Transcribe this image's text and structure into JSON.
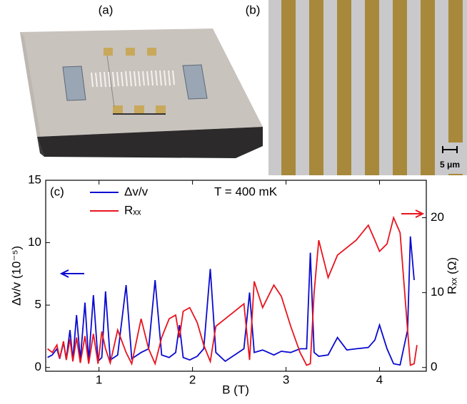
{
  "panel_a": {
    "label": "(a)"
  },
  "panel_b": {
    "label": "(b)",
    "scale_bar": "5 μm"
  },
  "chart_data": {
    "type": "line",
    "panel_label": "(c)",
    "annotation": "T = 400 mK",
    "x_label": "B (T)",
    "y_label": "Δv/v (10⁻⁵)",
    "y2_label": "Rₓₓ (Ω)",
    "xlim": [
      0.43,
      4.5
    ],
    "xticks": [
      1,
      2,
      3,
      4
    ],
    "ylim": [
      -0.3,
      15
    ],
    "yticks": [
      0,
      5,
      10,
      15
    ],
    "y2lim": [
      -0.5,
      25
    ],
    "y2ticks": [
      0,
      10,
      20
    ],
    "legend": "top-left",
    "x": [
      0.45,
      0.5,
      0.55,
      0.58,
      0.62,
      0.65,
      0.69,
      0.72,
      0.76,
      0.8,
      0.85,
      0.89,
      0.94,
      0.99,
      1.03,
      1.07,
      1.12,
      1.2,
      1.29,
      1.35,
      1.45,
      1.53,
      1.6,
      1.67,
      1.75,
      1.82,
      1.86,
      1.9,
      1.97,
      2.05,
      2.12,
      2.19,
      2.25,
      2.35,
      2.45,
      2.55,
      2.61,
      2.66,
      2.75,
      2.87,
      2.95,
      3.05,
      3.15,
      3.22,
      3.26,
      3.3,
      3.35,
      3.45,
      3.55,
      3.65,
      3.75,
      3.88,
      3.95,
      4.0,
      4.08,
      4.15,
      4.22,
      4.3,
      4.33,
      4.37,
      4.4
    ],
    "series": [
      {
        "name": "Δv/v",
        "color": "#0a0ad0",
        "axis": "y",
        "values": [
          0.8,
          1.0,
          1.5,
          0.7,
          2.0,
          0.7,
          3.0,
          0.6,
          4.2,
          0.6,
          5.2,
          0.5,
          5.8,
          0.5,
          0.8,
          6.1,
          0.6,
          1.0,
          6.6,
          0.7,
          1.2,
          1.5,
          7.0,
          1.0,
          0.8,
          1.2,
          3.4,
          0.8,
          0.6,
          0.9,
          1.5,
          7.9,
          1.2,
          0.5,
          1.0,
          1.5,
          6.0,
          1.2,
          1.4,
          1.0,
          1.3,
          1.2,
          1.5,
          1.5,
          9.2,
          1.2,
          0.9,
          1.0,
          2.4,
          1.4,
          1.5,
          1.6,
          2.2,
          3.4,
          1.5,
          0.3,
          0.2,
          3.0,
          10.5,
          7.0,
          null
        ]
      },
      {
        "name": "Rₓₓ",
        "color": "#e8141e",
        "axis": "y2",
        "values": [
          2.5,
          2.0,
          3.0,
          1.2,
          3.5,
          1.0,
          3.8,
          0.8,
          4.0,
          0.6,
          4.2,
          0.5,
          4.5,
          0.5,
          4.8,
          2.5,
          0.6,
          5.0,
          2.0,
          0.5,
          6.5,
          2.5,
          0.5,
          4.0,
          6.5,
          7.0,
          4.0,
          7.5,
          8.0,
          6.0,
          3.0,
          0.8,
          5.5,
          6.5,
          7.5,
          8.5,
          1.0,
          11.5,
          8.0,
          11.0,
          9.5,
          5.5,
          2.0,
          0.3,
          0.5,
          10.0,
          17.0,
          12.0,
          15.0,
          16.0,
          17.0,
          19.0,
          17.0,
          15.5,
          16.5,
          20.0,
          18.0,
          5.0,
          0.3,
          0.5,
          3.0
        ]
      }
    ]
  }
}
